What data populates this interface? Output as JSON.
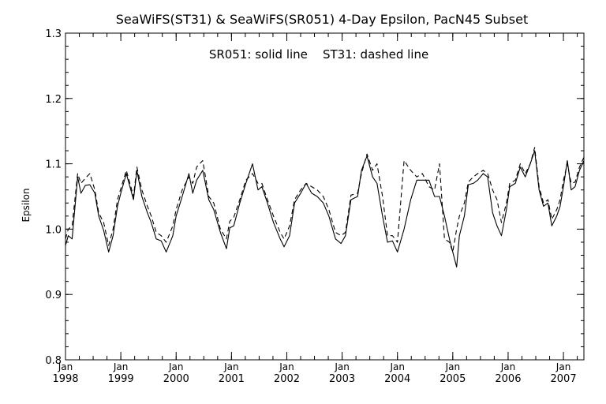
{
  "chart_data": {
    "type": "line",
    "title": "SeaWiFS(ST31) & SeaWiFS(SR051) 4-Day Epsilon, PacN45 Subset",
    "annotation": "SR051: solid line    ST31: dashed line",
    "ylabel": "Epsilon",
    "xlabel": "",
    "ylim": [
      0.8,
      1.3
    ],
    "y_ticks": [
      "0.8",
      "0.9",
      "1.0",
      "1.1",
      "1.2",
      "1.3"
    ],
    "xlim": [
      1998.0,
      2007.37
    ],
    "x_ticks": [
      {
        "month": "Jan",
        "year": "1998"
      },
      {
        "month": "Jan",
        "year": "1999"
      },
      {
        "month": "Jan",
        "year": "2000"
      },
      {
        "month": "Jan",
        "year": "2001"
      },
      {
        "month": "Jan",
        "year": "2002"
      },
      {
        "month": "Jan",
        "year": "2003"
      },
      {
        "month": "Jan",
        "year": "2004"
      },
      {
        "month": "Jan",
        "year": "2005"
      },
      {
        "month": "Jan",
        "year": "2006"
      },
      {
        "month": "Jan",
        "year": "2007"
      }
    ],
    "series": [
      {
        "name": "SR051",
        "style": "solid",
        "color": "#000000",
        "x": [
          1998.0,
          1998.05,
          1998.12,
          1998.22,
          1998.28,
          1998.36,
          1998.44,
          1998.53,
          1998.6,
          1998.69,
          1998.78,
          1998.86,
          1998.94,
          1999.0,
          1999.1,
          1999.23,
          1999.29,
          1999.38,
          1999.48,
          1999.55,
          1999.64,
          1999.73,
          1999.82,
          1999.94,
          2000.0,
          2000.11,
          2000.23,
          2000.3,
          2000.37,
          2000.48,
          2000.59,
          2000.68,
          2000.8,
          2000.91,
          2000.97,
          2001.04,
          2001.15,
          2001.26,
          2001.38,
          2001.48,
          2001.55,
          2001.65,
          2001.76,
          2001.88,
          2001.95,
          2002.05,
          2002.14,
          2002.25,
          2002.35,
          2002.45,
          2002.55,
          2002.66,
          2002.76,
          2002.88,
          2002.98,
          2003.06,
          2003.16,
          2003.28,
          2003.35,
          2003.45,
          2003.55,
          2003.63,
          2003.73,
          2003.82,
          2003.91,
          2004.0,
          2004.12,
          2004.24,
          2004.35,
          2004.45,
          2004.57,
          2004.67,
          2004.76,
          2004.85,
          2004.94,
          2005.0,
          2005.07,
          2005.12,
          2005.21,
          2005.28,
          2005.37,
          2005.45,
          2005.55,
          2005.63,
          2005.72,
          2005.8,
          2005.88,
          2005.97,
          2006.03,
          2006.13,
          2006.22,
          2006.31,
          2006.4,
          2006.48,
          2006.56,
          2006.64,
          2006.72,
          2006.79,
          2006.88,
          2006.94,
          2007.0,
          2007.07,
          2007.14,
          2007.21,
          2007.29,
          2007.37
        ],
        "y": [
          0.975,
          0.99,
          0.985,
          1.08,
          1.055,
          1.067,
          1.068,
          1.055,
          1.02,
          0.998,
          0.965,
          0.99,
          1.035,
          1.055,
          1.085,
          1.045,
          1.09,
          1.05,
          1.025,
          1.01,
          0.985,
          0.982,
          0.965,
          0.99,
          1.02,
          1.05,
          1.085,
          1.055,
          1.075,
          1.09,
          1.045,
          1.03,
          0.995,
          0.97,
          1.002,
          1.005,
          1.04,
          1.07,
          1.1,
          1.06,
          1.065,
          1.04,
          1.01,
          0.985,
          0.973,
          0.99,
          1.04,
          1.055,
          1.07,
          1.055,
          1.05,
          1.04,
          1.02,
          0.985,
          0.978,
          0.99,
          1.045,
          1.05,
          1.09,
          1.112,
          1.08,
          1.07,
          1.02,
          0.98,
          0.982,
          0.965,
          1.0,
          1.045,
          1.075,
          1.075,
          1.075,
          1.05,
          1.05,
          1.02,
          0.985,
          0.965,
          0.942,
          0.99,
          1.02,
          1.068,
          1.07,
          1.075,
          1.085,
          1.08,
          1.025,
          1.005,
          0.99,
          1.03,
          1.065,
          1.07,
          1.095,
          1.08,
          1.1,
          1.12,
          1.06,
          1.035,
          1.04,
          1.005,
          1.02,
          1.035,
          1.065,
          1.105,
          1.06,
          1.065,
          1.09,
          1.105
        ]
      },
      {
        "name": "ST31",
        "style": "dashed",
        "color": "#000000",
        "x": [
          1998.0,
          1998.05,
          1998.12,
          1998.22,
          1998.28,
          1998.36,
          1998.44,
          1998.53,
          1998.6,
          1998.69,
          1998.78,
          1998.86,
          1998.94,
          1999.0,
          1999.1,
          1999.23,
          1999.29,
          1999.38,
          1999.48,
          1999.55,
          1999.64,
          1999.73,
          1999.82,
          1999.94,
          2000.0,
          2000.11,
          2000.23,
          2000.3,
          2000.37,
          2000.48,
          2000.59,
          2000.68,
          2000.8,
          2000.91,
          2000.97,
          2001.04,
          2001.15,
          2001.26,
          2001.38,
          2001.48,
          2001.55,
          2001.65,
          2001.76,
          2001.88,
          2001.95,
          2002.05,
          2002.14,
          2002.25,
          2002.35,
          2002.45,
          2002.55,
          2002.66,
          2002.76,
          2002.88,
          2002.98,
          2003.06,
          2003.16,
          2003.28,
          2003.35,
          2003.45,
          2003.55,
          2003.63,
          2003.73,
          2003.82,
          2003.91,
          2004.0,
          2004.12,
          2004.24,
          2004.35,
          2004.45,
          2004.57,
          2004.67,
          2004.76,
          2004.85,
          2004.94,
          2005.0,
          2005.07,
          2005.12,
          2005.21,
          2005.28,
          2005.37,
          2005.45,
          2005.55,
          2005.63,
          2005.72,
          2005.8,
          2005.88,
          2005.97,
          2006.03,
          2006.13,
          2006.22,
          2006.31,
          2006.4,
          2006.48,
          2006.56,
          2006.64,
          2006.72,
          2006.79,
          2006.88,
          2006.94,
          2007.0,
          2007.07,
          2007.14,
          2007.21,
          2007.29,
          2007.37
        ],
        "y": [
          0.985,
          1.0,
          1.005,
          1.085,
          1.07,
          1.078,
          1.085,
          1.06,
          1.025,
          1.01,
          0.975,
          1.0,
          1.045,
          1.062,
          1.09,
          1.05,
          1.095,
          1.06,
          1.035,
          1.02,
          0.995,
          0.99,
          0.98,
          1.005,
          1.03,
          1.06,
          1.08,
          1.07,
          1.095,
          1.105,
          1.05,
          1.04,
          1.0,
          0.985,
          1.012,
          1.018,
          1.045,
          1.075,
          1.085,
          1.07,
          1.07,
          1.045,
          1.02,
          0.995,
          0.985,
          1.005,
          1.045,
          1.06,
          1.07,
          1.065,
          1.06,
          1.05,
          1.03,
          0.995,
          0.99,
          0.995,
          1.052,
          1.055,
          1.085,
          1.115,
          1.09,
          1.1,
          1.05,
          0.99,
          0.99,
          0.98,
          1.105,
          1.09,
          1.08,
          1.085,
          1.065,
          1.06,
          1.1,
          0.985,
          0.98,
          0.965,
          1.0,
          1.02,
          1.04,
          1.072,
          1.08,
          1.085,
          1.09,
          1.085,
          1.06,
          1.045,
          1.01,
          1.04,
          1.07,
          1.075,
          1.1,
          1.085,
          1.1,
          1.125,
          1.065,
          1.04,
          1.045,
          1.015,
          1.03,
          1.045,
          1.075,
          1.1,
          1.07,
          1.072,
          1.095,
          1.11
        ]
      }
    ],
    "grid": false,
    "legend": "none"
  }
}
